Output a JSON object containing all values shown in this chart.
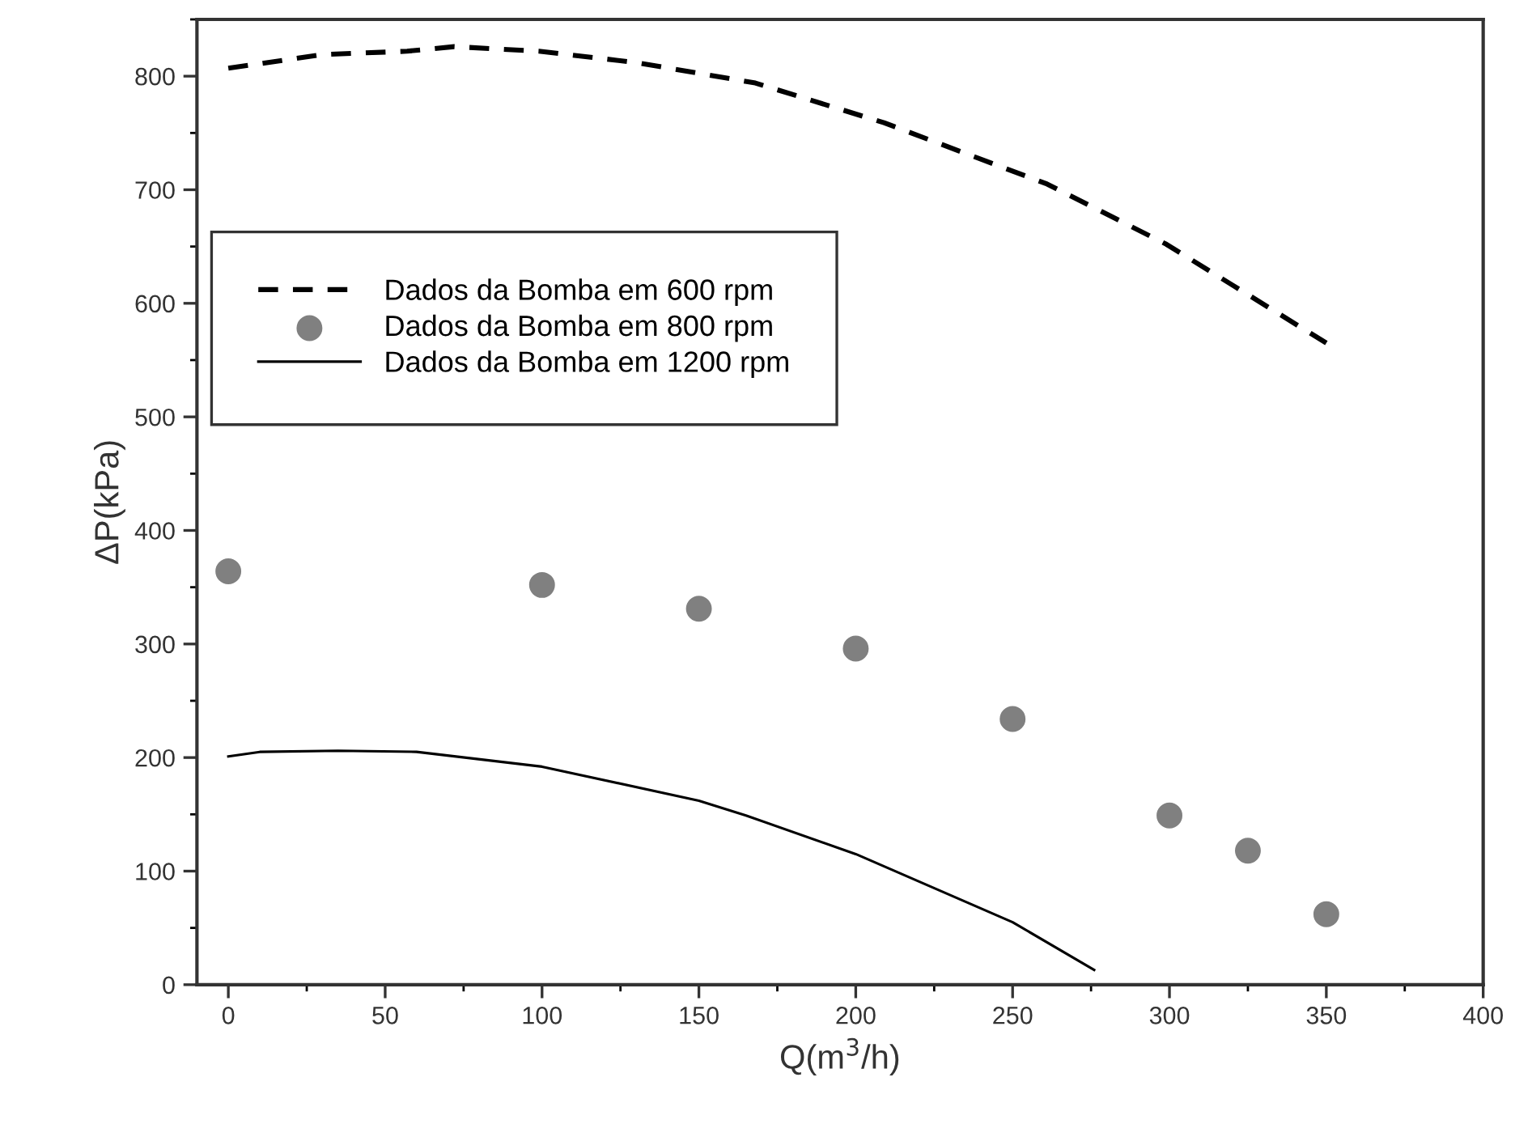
{
  "chart_data": {
    "type": "line",
    "xlabel": "Q(m$^{3}$/h)",
    "ylabel": "ΔP(kPa)",
    "xlim": [
      -10,
      400
    ],
    "ylim": [
      0,
      850
    ],
    "xticks": [
      0,
      50,
      100,
      150,
      200,
      250,
      300,
      350,
      400
    ],
    "yticks": [
      0,
      100,
      200,
      300,
      400,
      500,
      600,
      700,
      800
    ],
    "grid": false,
    "legend": "left",
    "series": [
      {
        "name": "Dados da Bomba em 600 rpm",
        "line_style": "dashed",
        "marker": "none",
        "color": "#000000",
        "x": [
          0,
          30,
          57,
          72,
          99,
          130,
          168,
          209,
          261,
          299,
          350
        ],
        "values": [
          807,
          819,
          822,
          826,
          822,
          812,
          794,
          759,
          705,
          652,
          565
        ]
      },
      {
        "name": "Dados da Bomba em 800 rpm",
        "type": "scatter",
        "marker": "circle",
        "color": "#808080",
        "x": [
          0,
          100,
          150,
          200,
          250,
          300,
          325,
          350
        ],
        "values": [
          364,
          352,
          331,
          296,
          234,
          149,
          118,
          62
        ]
      },
      {
        "name": "Dados da Bomba em 1200 rpm",
        "line_style": "solid",
        "marker": "none",
        "color": "#000000",
        "x": [
          0,
          10,
          35,
          60,
          100,
          150,
          165,
          200,
          250,
          276
        ],
        "values": [
          201,
          205,
          206,
          205,
          192,
          162,
          149,
          115,
          55,
          13
        ]
      }
    ]
  }
}
